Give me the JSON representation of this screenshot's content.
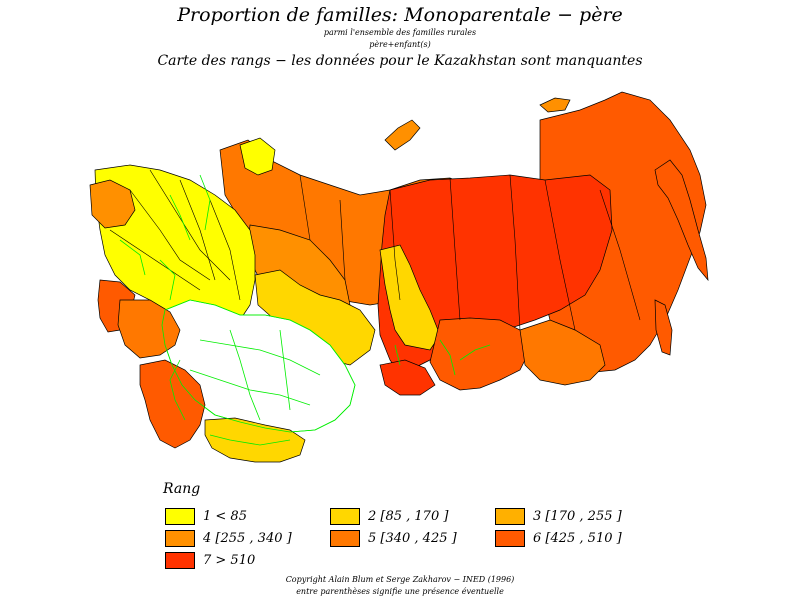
{
  "header": {
    "title": "Proportion de familles: Monoparentale − père",
    "subtitle_line1": "parmi l'ensemble des familles rurales",
    "subtitle_line2": "père+enfant(s)",
    "subtitle_line3": "Carte des rangs − les données pour le Kazakhstan sont manquantes"
  },
  "legend": {
    "title": "Rang",
    "items": [
      {
        "label": "1  <  85",
        "color": "#ffff00"
      },
      {
        "label": "2  [85  ,  170  ]",
        "color": "#ffd700"
      },
      {
        "label": "3  [170  ,  255  ]",
        "color": "#ffb000"
      },
      {
        "label": "4  [255  ,  340  ]",
        "color": "#ff9000"
      },
      {
        "label": "5  [340  ,  425  ]",
        "color": "#ff7800"
      },
      {
        "label": "6  [425  ,  510  ]",
        "color": "#ff5a00"
      },
      {
        "label": "7  >  510",
        "color": "#ff3300"
      }
    ]
  },
  "footer": {
    "copyright": "Copyright Alain Blum et Serge Zakharov − INED (1996)",
    "note": "entre parenthèses signifie une présence éventuelle"
  },
  "map": {
    "missing_fill": "#ffffff",
    "border_green": "#00ee00",
    "border_black": "#000000"
  }
}
